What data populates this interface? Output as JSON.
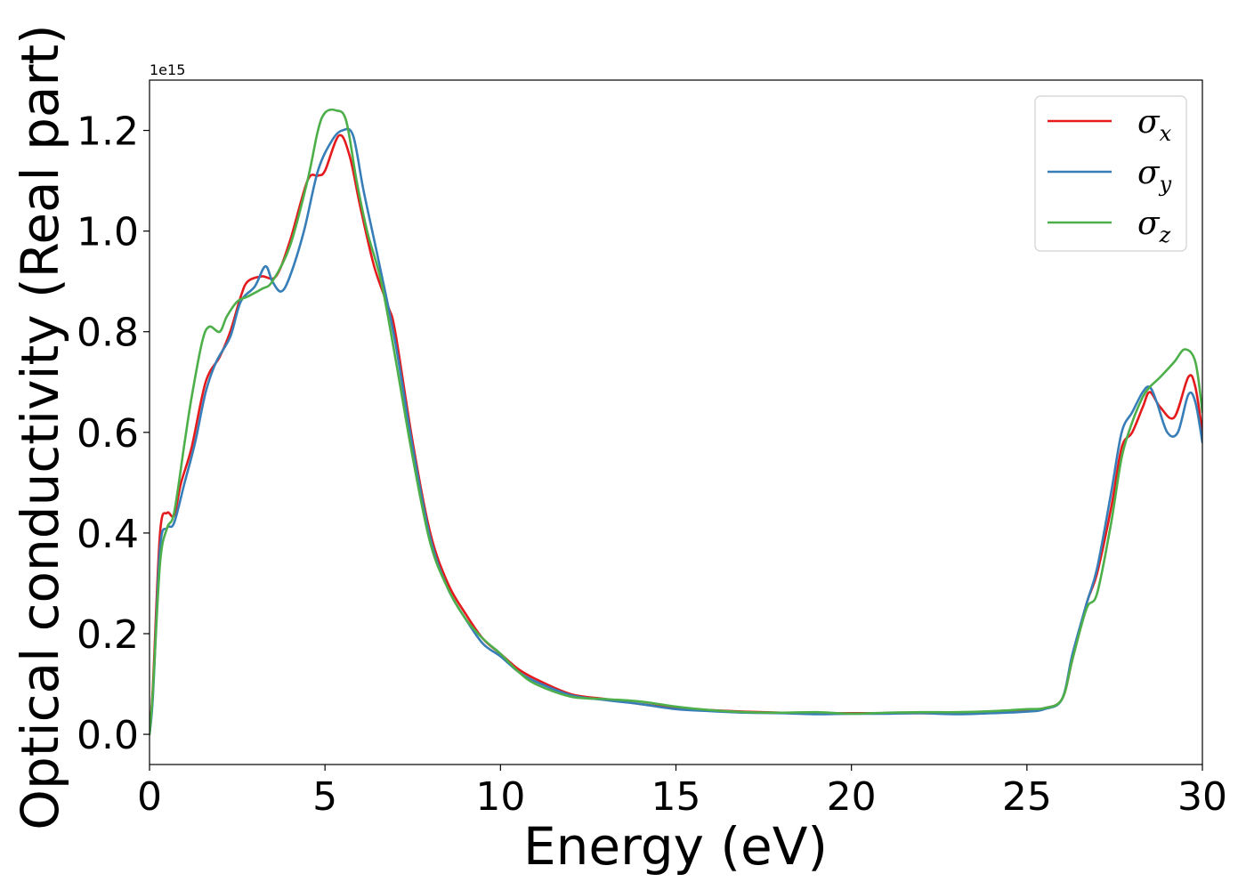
{
  "chart_data": {
    "type": "line",
    "title": "",
    "xlabel": "Energy (eV)",
    "ylabel": "Optical conductivity (Real part)",
    "y_offset_label": "1e15",
    "xlim": [
      0,
      30
    ],
    "ylim": [
      -0.06,
      1.3
    ],
    "x_ticks": [
      0,
      5,
      10,
      15,
      20,
      25,
      30
    ],
    "x_tick_labels": [
      "0",
      "5",
      "10",
      "15",
      "20",
      "25",
      "30"
    ],
    "y_ticks": [
      0.0,
      0.2,
      0.4,
      0.6,
      0.8,
      1.0,
      1.2
    ],
    "y_tick_labels": [
      "0.0",
      "0.2",
      "0.4",
      "0.6",
      "0.8",
      "1.0",
      "1.2"
    ],
    "grid": false,
    "legend_position": "top-right",
    "series": [
      {
        "name": "σx",
        "symbol": "σ",
        "subscript": "x",
        "color": "#e41a1c",
        "points": [
          [
            0,
            0.0
          ],
          [
            0.1,
            0.1
          ],
          [
            0.3,
            0.4
          ],
          [
            0.5,
            0.44
          ],
          [
            0.7,
            0.435
          ],
          [
            0.9,
            0.5
          ],
          [
            1.2,
            0.57
          ],
          [
            1.6,
            0.7
          ],
          [
            2.0,
            0.75
          ],
          [
            2.3,
            0.8
          ],
          [
            2.6,
            0.87
          ],
          [
            2.8,
            0.9
          ],
          [
            3.2,
            0.91
          ],
          [
            3.6,
            0.91
          ],
          [
            4.0,
            0.98
          ],
          [
            4.5,
            1.1
          ],
          [
            4.8,
            1.11
          ],
          [
            5.0,
            1.12
          ],
          [
            5.4,
            1.19
          ],
          [
            5.7,
            1.15
          ],
          [
            6.0,
            1.05
          ],
          [
            6.4,
            0.93
          ],
          [
            6.8,
            0.85
          ],
          [
            7.0,
            0.8
          ],
          [
            7.5,
            0.58
          ],
          [
            8.0,
            0.4
          ],
          [
            8.5,
            0.3
          ],
          [
            9.0,
            0.24
          ],
          [
            9.5,
            0.19
          ],
          [
            10.0,
            0.16
          ],
          [
            10.5,
            0.13
          ],
          [
            11.0,
            0.11
          ],
          [
            12.0,
            0.08
          ],
          [
            13.0,
            0.07
          ],
          [
            14.0,
            0.06
          ],
          [
            15.0,
            0.052
          ],
          [
            16.0,
            0.048
          ],
          [
            17.0,
            0.045
          ],
          [
            18.0,
            0.043
          ],
          [
            19.0,
            0.042
          ],
          [
            20.0,
            0.042
          ],
          [
            21.0,
            0.042
          ],
          [
            22.0,
            0.042
          ],
          [
            23.0,
            0.042
          ],
          [
            24.0,
            0.045
          ],
          [
            25.0,
            0.048
          ],
          [
            25.5,
            0.052
          ],
          [
            26.0,
            0.07
          ],
          [
            26.3,
            0.15
          ],
          [
            26.7,
            0.26
          ],
          [
            27.0,
            0.32
          ],
          [
            27.4,
            0.45
          ],
          [
            27.7,
            0.57
          ],
          [
            28.0,
            0.6
          ],
          [
            28.3,
            0.65
          ],
          [
            28.5,
            0.68
          ],
          [
            28.8,
            0.65
          ],
          [
            29.2,
            0.63
          ],
          [
            29.6,
            0.71
          ],
          [
            29.8,
            0.69
          ],
          [
            30.0,
            0.6
          ]
        ]
      },
      {
        "name": "σy",
        "symbol": "σ",
        "subscript": "y",
        "color": "#377eb8",
        "points": [
          [
            0,
            0.0
          ],
          [
            0.1,
            0.08
          ],
          [
            0.3,
            0.37
          ],
          [
            0.5,
            0.41
          ],
          [
            0.7,
            0.42
          ],
          [
            1.0,
            0.5
          ],
          [
            1.3,
            0.58
          ],
          [
            1.6,
            0.68
          ],
          [
            1.9,
            0.74
          ],
          [
            2.3,
            0.79
          ],
          [
            2.6,
            0.86
          ],
          [
            3.0,
            0.89
          ],
          [
            3.3,
            0.93
          ],
          [
            3.5,
            0.9
          ],
          [
            3.75,
            0.88
          ],
          [
            4.0,
            0.91
          ],
          [
            4.4,
            1.0
          ],
          [
            4.8,
            1.12
          ],
          [
            5.2,
            1.18
          ],
          [
            5.5,
            1.2
          ],
          [
            5.8,
            1.19
          ],
          [
            6.1,
            1.08
          ],
          [
            6.5,
            0.95
          ],
          [
            7.0,
            0.78
          ],
          [
            7.5,
            0.57
          ],
          [
            8.0,
            0.39
          ],
          [
            8.5,
            0.29
          ],
          [
            9.0,
            0.23
          ],
          [
            9.5,
            0.18
          ],
          [
            10.0,
            0.155
          ],
          [
            10.5,
            0.125
          ],
          [
            11.0,
            0.105
          ],
          [
            12.0,
            0.078
          ],
          [
            13.0,
            0.068
          ],
          [
            14.0,
            0.06
          ],
          [
            15.0,
            0.05
          ],
          [
            16.0,
            0.046
          ],
          [
            17.0,
            0.043
          ],
          [
            18.0,
            0.042
          ],
          [
            19.0,
            0.04
          ],
          [
            20.0,
            0.041
          ],
          [
            21.0,
            0.041
          ],
          [
            22.0,
            0.042
          ],
          [
            23.0,
            0.04
          ],
          [
            24.0,
            0.042
          ],
          [
            25.0,
            0.045
          ],
          [
            25.5,
            0.05
          ],
          [
            26.0,
            0.07
          ],
          [
            26.3,
            0.16
          ],
          [
            26.7,
            0.26
          ],
          [
            27.0,
            0.33
          ],
          [
            27.4,
            0.48
          ],
          [
            27.7,
            0.6
          ],
          [
            28.0,
            0.64
          ],
          [
            28.3,
            0.68
          ],
          [
            28.5,
            0.69
          ],
          [
            28.7,
            0.66
          ],
          [
            29.0,
            0.6
          ],
          [
            29.3,
            0.6
          ],
          [
            29.6,
            0.675
          ],
          [
            29.8,
            0.66
          ],
          [
            30.0,
            0.58
          ]
        ]
      },
      {
        "name": "σz",
        "symbol": "σ",
        "subscript": "z",
        "color": "#4daf4a",
        "points": [
          [
            0,
            0.0
          ],
          [
            0.1,
            0.09
          ],
          [
            0.3,
            0.34
          ],
          [
            0.5,
            0.41
          ],
          [
            0.7,
            0.44
          ],
          [
            1.0,
            0.58
          ],
          [
            1.2,
            0.67
          ],
          [
            1.5,
            0.78
          ],
          [
            1.7,
            0.81
          ],
          [
            2.0,
            0.8
          ],
          [
            2.2,
            0.83
          ],
          [
            2.5,
            0.86
          ],
          [
            2.8,
            0.87
          ],
          [
            3.2,
            0.885
          ],
          [
            3.5,
            0.9
          ],
          [
            4.0,
            0.97
          ],
          [
            4.5,
            1.1
          ],
          [
            4.8,
            1.2
          ],
          [
            5.0,
            1.235
          ],
          [
            5.3,
            1.24
          ],
          [
            5.6,
            1.22
          ],
          [
            5.9,
            1.1
          ],
          [
            6.2,
            1.0
          ],
          [
            6.6,
            0.9
          ],
          [
            7.0,
            0.75
          ],
          [
            7.5,
            0.55
          ],
          [
            8.0,
            0.38
          ],
          [
            8.5,
            0.29
          ],
          [
            9.0,
            0.23
          ],
          [
            9.5,
            0.19
          ],
          [
            10.0,
            0.16
          ],
          [
            10.5,
            0.125
          ],
          [
            11.0,
            0.1
          ],
          [
            12.0,
            0.075
          ],
          [
            13.0,
            0.07
          ],
          [
            14.0,
            0.065
          ],
          [
            15.0,
            0.055
          ],
          [
            16.0,
            0.048
          ],
          [
            17.0,
            0.044
          ],
          [
            18.0,
            0.043
          ],
          [
            19.0,
            0.044
          ],
          [
            20.0,
            0.041
          ],
          [
            21.0,
            0.043
          ],
          [
            22.0,
            0.044
          ],
          [
            23.0,
            0.044
          ],
          [
            24.0,
            0.046
          ],
          [
            25.0,
            0.05
          ],
          [
            25.5,
            0.052
          ],
          [
            26.0,
            0.07
          ],
          [
            26.3,
            0.15
          ],
          [
            26.7,
            0.25
          ],
          [
            27.0,
            0.28
          ],
          [
            27.4,
            0.42
          ],
          [
            27.7,
            0.55
          ],
          [
            28.0,
            0.62
          ],
          [
            28.3,
            0.67
          ],
          [
            28.5,
            0.69
          ],
          [
            28.8,
            0.71
          ],
          [
            29.2,
            0.74
          ],
          [
            29.5,
            0.765
          ],
          [
            29.8,
            0.74
          ],
          [
            30.0,
            0.64
          ]
        ]
      }
    ]
  }
}
